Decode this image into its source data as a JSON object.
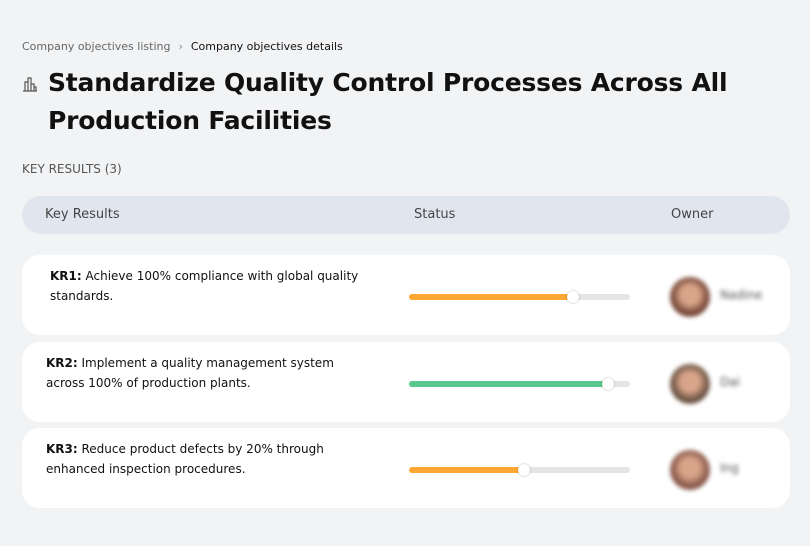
{
  "breadcrumb": {
    "parent": "Company objectives listing",
    "separator": "›",
    "current": "Company objectives details"
  },
  "objective": {
    "icon": "building-chart-icon",
    "title": "Standardize Quality Control Processes Across All Production Facilities"
  },
  "key_results_label": "KEY RESULTS (3)",
  "table": {
    "headers": {
      "key_results": "Key Results",
      "status": "Status",
      "owner": "Owner"
    }
  },
  "rows": [
    {
      "id": "KR1:",
      "text": " Achieve 100% compliance with global quality standards.",
      "progress": 74,
      "color": "#ffa733",
      "owner": "Nadine",
      "avatar_color": "#7a4a3a"
    },
    {
      "id": "KR2:",
      "text": " Implement a quality management system across 100% of production plants.",
      "progress": 90,
      "color": "#57c78e",
      "owner": "Dai",
      "avatar_color": "#6e5545"
    },
    {
      "id": "KR3:",
      "text": " Reduce product defects by 20% through enhanced inspection procedures.",
      "progress": 52,
      "color": "#ffa733",
      "owner": "Ing",
      "avatar_color": "#8a5a4c"
    }
  ]
}
